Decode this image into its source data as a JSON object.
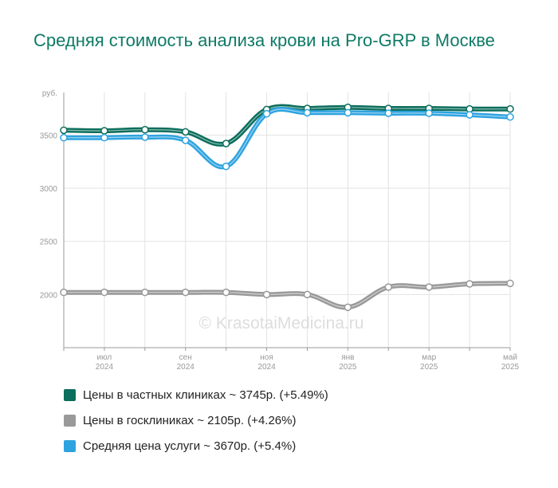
{
  "chart_data": {
    "type": "line",
    "title": "Средняя стоимость анализа крови на Pro-GRP в Москве",
    "y_unit": "руб.",
    "ylim": [
      1500,
      3900
    ],
    "y_ticks": [
      2000,
      2500,
      3000,
      3500
    ],
    "grid": true,
    "x_positions": [
      "2024-06",
      "2024-07",
      "2024-08",
      "2024-09",
      "2024-10",
      "2024-11",
      "2024-12",
      "2025-01",
      "2025-02",
      "2025-03",
      "2025-04",
      "2025-05"
    ],
    "x_tick_labels": [
      {
        "at": "2024-07",
        "month": "июл",
        "year": "2024"
      },
      {
        "at": "2024-09",
        "month": "сен",
        "year": "2024"
      },
      {
        "at": "2024-11",
        "month": "ноя",
        "year": "2024"
      },
      {
        "at": "2025-01",
        "month": "янв",
        "year": "2025"
      },
      {
        "at": "2025-03",
        "month": "мар",
        "year": "2025"
      },
      {
        "at": "2025-05",
        "month": "май",
        "year": "2025"
      }
    ],
    "series": [
      {
        "name": "Цены в частных клиниках",
        "color": "#0c6e5c",
        "values": [
          3545,
          3540,
          3550,
          3530,
          3420,
          3740,
          3750,
          3760,
          3750,
          3750,
          3745,
          3745
        ]
      },
      {
        "name": "Цены в госклиниках",
        "color": "#999999",
        "values": [
          2020,
          2020,
          2020,
          2020,
          2020,
          2000,
          2000,
          1880,
          2070,
          2070,
          2100,
          2105
        ]
      },
      {
        "name": "Средняя цена услуги",
        "color": "#2ea3e0",
        "values": [
          3475,
          3475,
          3480,
          3450,
          3205,
          3700,
          3710,
          3710,
          3705,
          3705,
          3690,
          3670
        ]
      }
    ],
    "legend": [
      {
        "label": "Цены в частных клиниках ~ 3745р. (+5.49%)",
        "color": "#0c6e5c"
      },
      {
        "label": "Цены в госклиниках ~ 2105р. (+4.26%)",
        "color": "#999999"
      },
      {
        "label": "Средняя цена услуги ~ 3670р. (+5.4%)",
        "color": "#2ea3e0"
      }
    ],
    "legend_position": "bottom",
    "watermark": "© KrasotaiMedicina.ru"
  }
}
